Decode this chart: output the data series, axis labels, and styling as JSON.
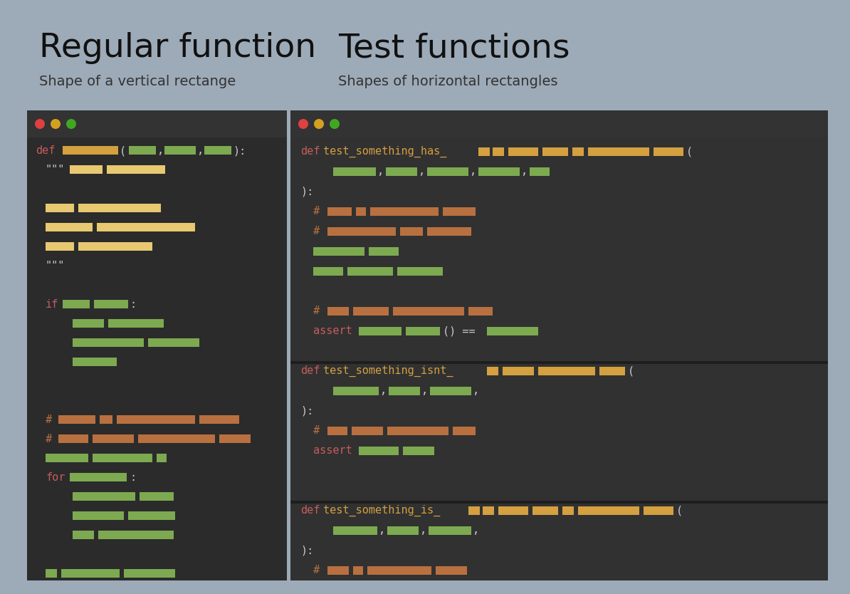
{
  "bg_color": "#9daab8",
  "title_left": "Regular function",
  "subtitle_left": "Shape of a vertical rectange",
  "title_right": "Test functions",
  "subtitle_right": "Shapes of horizontal rectangles",
  "editor_bg": "#2b2b2b",
  "editor_bg2": "#2a2a2a",
  "panel_bg": "#313131",
  "titlebar_bg": "#333333",
  "title_color": "#111111",
  "subtitle_color": "#333333",
  "keyword_color": "#c75c5c",
  "comment_color": "#b87040",
  "orange_token": "#d4a040",
  "light_orange_token": "#e8c870",
  "green_token": "#7daa50",
  "dot_red": "#e04040",
  "dot_yellow": "#d4a020",
  "dot_green": "#40a820",
  "sep_color": "#1e1e1e",
  "white_color": "#cccccc"
}
